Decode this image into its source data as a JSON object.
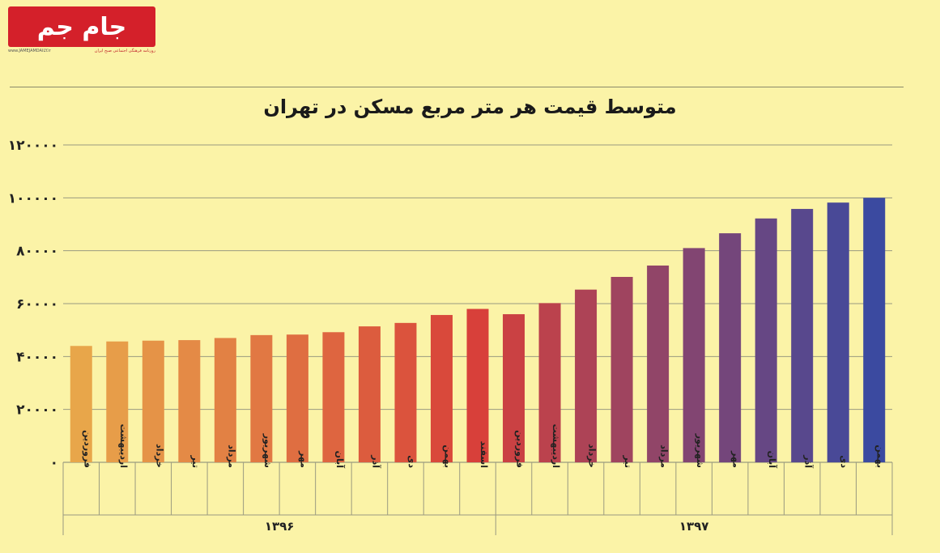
{
  "logo": {
    "text": "جام جم",
    "url": "www.JAMEJAMDAILY.ir",
    "tagline": "روزنامه فرهنگی اجتماعی صبح ایران"
  },
  "colors": {
    "background": "#fbf3a7",
    "logo_red": "#d4202a",
    "bar_start": "#e8a64a",
    "bar_mid": "#d8403a",
    "bar_end": "#3b4aa0",
    "grid": "#9a9a80"
  },
  "chart_data": {
    "type": "bar",
    "title": "متوسط قیمت هر متر مربع مسکن در تهران",
    "xlabel": "",
    "ylabel": "",
    "ylim": [
      0,
      120000
    ],
    "yticks": [
      0,
      20000,
      40000,
      60000,
      80000,
      100000,
      120000
    ],
    "ytick_labels": [
      "۰",
      "۲۰۰۰۰",
      "۴۰۰۰۰",
      "۶۰۰۰۰",
      "۸۰۰۰۰",
      "۱۰۰۰۰۰",
      "۱۲۰۰۰۰"
    ],
    "grid": true,
    "categories": [
      "فروردین",
      "اردیبهشت",
      "خرداد",
      "تیر",
      "مرداد",
      "شهریور",
      "مهر",
      "آبان",
      "آذر",
      "دی",
      "بهمن",
      "اسفند",
      "فروردین",
      "اردیبهشت",
      "خرداد",
      "تیر",
      "مرداد",
      "شهریور",
      "مهر",
      "آبان",
      "آذر",
      "دی",
      "بهمن"
    ],
    "values": [
      44000,
      45700,
      46000,
      46200,
      47000,
      48100,
      48300,
      49200,
      51400,
      52700,
      55700,
      58000,
      56000,
      60200,
      65300,
      70100,
      74400,
      81000,
      86600,
      92200,
      95800,
      98200,
      100000
    ],
    "groups": [
      {
        "label": "۱۳۹۶",
        "start": 0,
        "end": 11
      },
      {
        "label": "۱۳۹۷",
        "start": 12,
        "end": 22
      }
    ]
  }
}
